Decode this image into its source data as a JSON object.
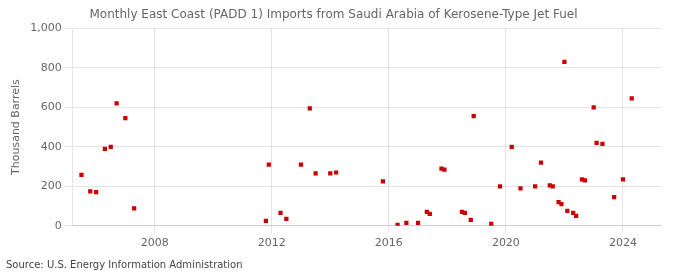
{
  "chart_data": {
    "type": "scatter",
    "title": "Monthly East Coast (PADD 1) Imports from Saudi Arabia of Kerosene-Type Jet Fuel",
    "ylabel": "Thousand Barrels",
    "source": "Source: U.S. Energy Information Administration",
    "color": "#cc0000",
    "marker": "square",
    "grid": true,
    "xlim": [
      2005.2,
      2025.3
    ],
    "xticks": [
      2008,
      2012,
      2016,
      2020,
      2024
    ],
    "ylim": [
      0,
      1000
    ],
    "yticks": [
      0,
      200,
      400,
      600,
      800,
      {
        "value": 1000,
        "label": "1,000"
      }
    ],
    "x": [
      2005.5,
      2005.8,
      2006.0,
      2006.3,
      2006.5,
      2006.7,
      2007.0,
      2007.3,
      2011.8,
      2011.9,
      2012.3,
      2012.5,
      2013.0,
      2013.3,
      2013.5,
      2014.0,
      2014.2,
      2015.8,
      2016.3,
      2016.6,
      2017.0,
      2017.3,
      2017.4,
      2017.8,
      2017.9,
      2018.5,
      2018.6,
      2018.8,
      2018.9,
      2019.5,
      2019.8,
      2020.2,
      2020.5,
      2021.0,
      2021.2,
      2021.5,
      2021.6,
      2021.8,
      2021.9,
      2022.0,
      2022.1,
      2022.3,
      2022.4,
      2022.6,
      2022.7,
      2023.0,
      2023.1,
      2023.3,
      2023.7,
      2024.0,
      2024.3
    ],
    "values": [
      258,
      175,
      170,
      390,
      400,
      620,
      545,
      88,
      25,
      310,
      65,
      35,
      310,
      595,
      265,
      265,
      270,
      225,
      5,
      15,
      15,
      70,
      60,
      290,
      285,
      70,
      65,
      30,
      555,
      10,
      200,
      400,
      190,
      200,
      320,
      205,
      200,
      120,
      110,
      830,
      75,
      65,
      50,
      235,
      230,
      600,
      420,
      415,
      145,
      235,
      645
    ]
  }
}
